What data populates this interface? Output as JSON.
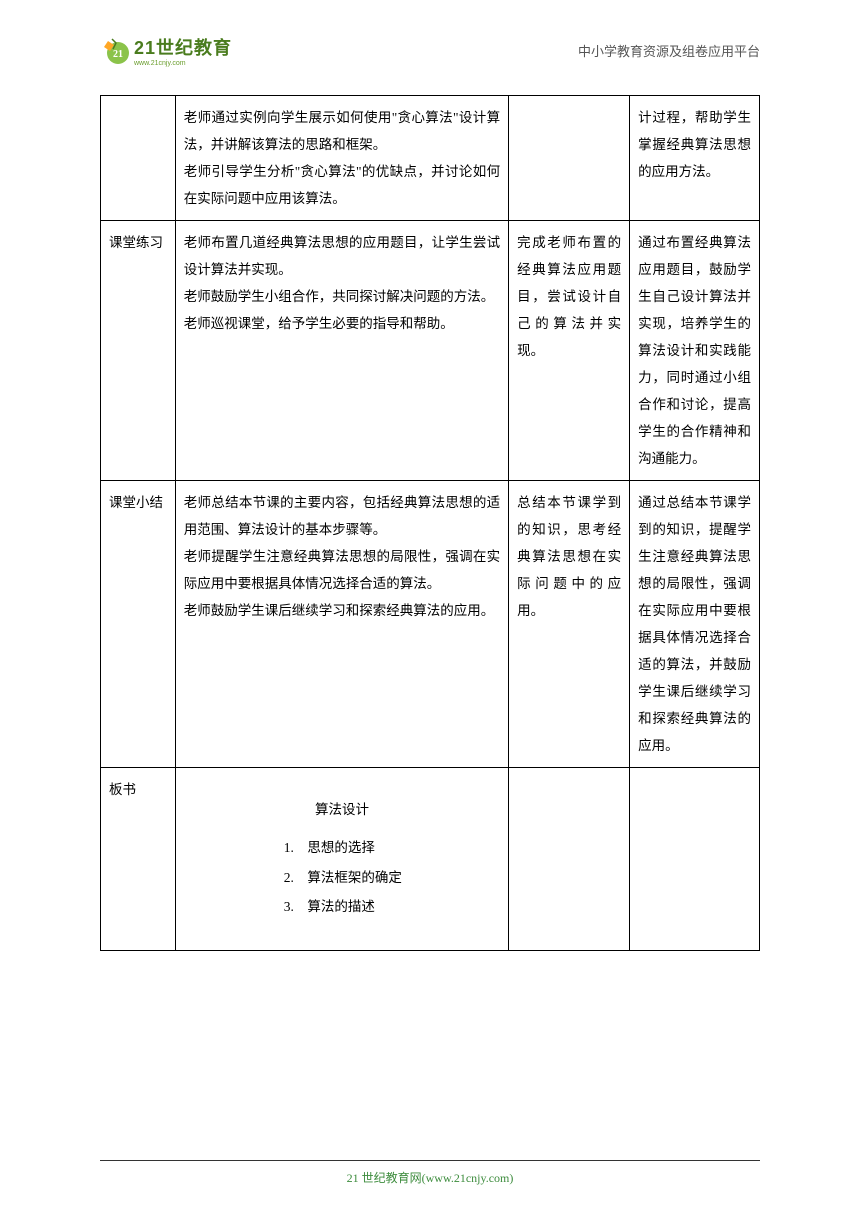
{
  "header": {
    "logo_main": "21世纪教育",
    "logo_sub": "www.21cnjy.com",
    "right_text": "中小学教育资源及组卷应用平台"
  },
  "table": {
    "rows": [
      {
        "c1": "",
        "c2": "老师通过实例向学生展示如何使用\"贪心算法\"设计算法，并讲解该算法的思路和框架。\n老师引导学生分析\"贪心算法\"的优缺点，并讨论如何在实际问题中应用该算法。",
        "c3": "",
        "c4": "计过程，帮助学生掌握经典算法思想的应用方法。"
      },
      {
        "c1": "课堂练习",
        "c2": "老师布置几道经典算法思想的应用题目，让学生尝试设计算法并实现。\n老师鼓励学生小组合作，共同探讨解决问题的方法。\n老师巡视课堂，给予学生必要的指导和帮助。",
        "c3": "完成老师布置的经典算法应用题目，尝试设计自己的算法并实现。",
        "c4": "通过布置经典算法应用题目，鼓励学生自己设计算法并实现，培养学生的算法设计和实践能力，同时通过小组合作和讨论，提高学生的合作精神和沟通能力。"
      },
      {
        "c1": "课堂小结",
        "c2": "老师总结本节课的主要内容，包括经典算法思想的适用范围、算法设计的基本步骤等。\n老师提醒学生注意经典算法思想的局限性，强调在实际应用中要根据具体情况选择合适的算法。\n老师鼓励学生课后继续学习和探索经典算法的应用。",
        "c3": "总结本节课学到的知识，思考经典算法思想在实际问题中的应用。",
        "c4": "通过总结本节课学到的知识，提醒学生注意经典算法思想的局限性，强调在实际应用中要根据具体情况选择合适的算法，并鼓励学生课后继续学习和探索经典算法的应用。"
      },
      {
        "c1": "板书",
        "board_title": "算法设计",
        "board_items": [
          "思想的选择",
          "算法框架的确定",
          "算法的描述"
        ]
      }
    ]
  },
  "footer": {
    "text": "21 世纪教育网(www.21cnjy.com)"
  },
  "colors": {
    "border": "#000000",
    "text": "#000000",
    "logo_green": "#4a7c1e",
    "footer_green": "#3d8c3d",
    "header_gray": "#555555"
  }
}
